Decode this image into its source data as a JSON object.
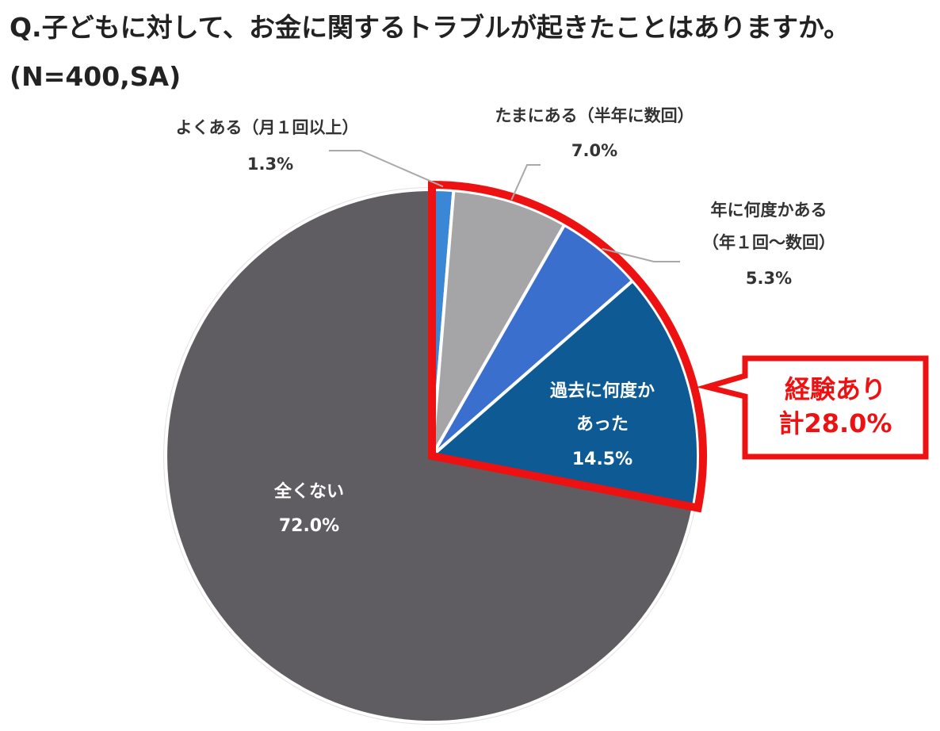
{
  "title": "Q.子どもに対して、お金に関するトラブルが起きたことはありますか。(N=400,SA)",
  "chart_data": {
    "type": "pie",
    "title": "Q.子どもに対して、お金に関するトラブルが起きたことはありますか。(N=400,SA)",
    "slices": [
      {
        "label_lines": [
          "よくある（月１回以上）"
        ],
        "value": 1.3,
        "value_text": "1.3%",
        "color": "#3a87d6"
      },
      {
        "label_lines": [
          "たまにある（半年に数回）"
        ],
        "value": 7.0,
        "value_text": "7.0%",
        "color": "#a5a4a6"
      },
      {
        "label_lines": [
          "年に何度かある",
          "（年１回〜数回）"
        ],
        "value": 5.3,
        "value_text": "5.3%",
        "color": "#3b6fcd"
      },
      {
        "label_lines": [
          "過去に何度か",
          "あった"
        ],
        "value": 14.5,
        "value_text": "14.5%",
        "color": "#0d5a94"
      },
      {
        "label_lines": [
          "全くない"
        ],
        "value": 72.0,
        "value_text": "72.0%",
        "color": "#5f5d61"
      }
    ],
    "callout": {
      "line1": "経験あり",
      "line2": "計28.0%",
      "color": "#ee1111"
    }
  }
}
